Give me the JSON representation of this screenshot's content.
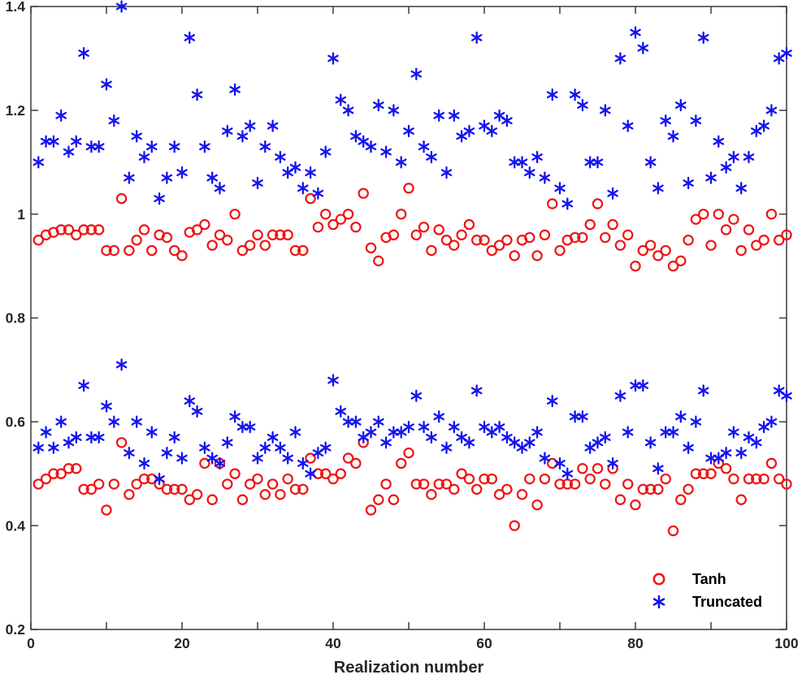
{
  "chart_data": {
    "type": "scatter",
    "title": "",
    "xlabel": "Realization number",
    "ylabel": "",
    "xlim": [
      0,
      100
    ],
    "ylim": [
      0.2,
      1.4
    ],
    "xticks": [
      0,
      10,
      20,
      30,
      40,
      50,
      60,
      70,
      80,
      90,
      100
    ],
    "xtick_labels": [
      "0",
      "",
      "20",
      "",
      "40",
      "",
      "60",
      "",
      "80",
      "",
      "100"
    ],
    "yticks": [
      0.2,
      0.4,
      0.6,
      0.8,
      1.0,
      1.2,
      1.4
    ],
    "ytick_labels": [
      "0.2",
      "0.4",
      "0.6",
      "0.8",
      "1",
      "1.2",
      "1.4"
    ],
    "grid": false,
    "box": true,
    "colors": {
      "tanh": "#ee1414",
      "truncated": "#1414ee",
      "axis": "#3b3b3b",
      "text": "#262626"
    },
    "legend": {
      "position": "inside-lower-right",
      "box": false,
      "entries": [
        {
          "label": "Tanh",
          "marker": "circle",
          "color": "#ee1414"
        },
        {
          "label": "Truncated",
          "marker": "asterisk",
          "color": "#1414ee"
        }
      ]
    },
    "x": {
      "start": 1,
      "step": 1,
      "count": 100
    },
    "series": [
      {
        "name": "Tanh",
        "marker": "circle",
        "color": "#ee1414",
        "groups": {
          "upper": [
            0.95,
            0.96,
            0.965,
            0.97,
            0.97,
            0.96,
            0.97,
            0.97,
            0.97,
            0.93,
            0.93,
            1.03,
            0.93,
            0.95,
            0.97,
            0.93,
            0.96,
            0.955,
            0.93,
            0.92,
            0.965,
            0.97,
            0.98,
            0.94,
            0.96,
            0.95,
            1.0,
            0.93,
            0.94,
            0.96,
            0.94,
            0.96,
            0.96,
            0.96,
            0.93,
            0.93,
            1.03,
            0.975,
            1.0,
            0.98,
            0.99,
            1.0,
            0.975,
            1.04,
            0.935,
            0.91,
            0.955,
            0.96,
            1.0,
            1.05,
            0.96,
            0.975,
            0.93,
            0.97,
            0.95,
            0.94,
            0.96,
            0.98,
            0.95,
            0.95,
            0.93,
            0.94,
            0.95,
            0.92,
            0.95,
            0.955,
            0.92,
            0.96,
            1.02,
            0.93,
            0.95,
            0.955,
            0.955,
            0.98,
            1.02,
            0.955,
            0.98,
            0.94,
            0.96,
            0.9,
            0.93,
            0.94,
            0.92,
            0.93,
            0.9,
            0.91,
            0.95,
            0.99,
            1.0,
            0.94,
            1.0,
            0.97,
            0.99,
            0.93,
            0.97,
            0.94,
            0.95,
            1.0,
            0.95,
            0.96
          ],
          "lower": [
            0.48,
            0.49,
            0.5,
            0.5,
            0.51,
            0.51,
            0.47,
            0.47,
            0.48,
            0.43,
            0.48,
            0.56,
            0.46,
            0.48,
            0.49,
            0.49,
            0.48,
            0.47,
            0.47,
            0.47,
            0.45,
            0.46,
            0.52,
            0.45,
            0.52,
            0.48,
            0.5,
            0.45,
            0.48,
            0.49,
            0.46,
            0.48,
            0.46,
            0.49,
            0.47,
            0.47,
            0.53,
            0.5,
            0.5,
            0.49,
            0.5,
            0.53,
            0.52,
            0.56,
            0.43,
            0.45,
            0.48,
            0.45,
            0.52,
            0.54,
            0.48,
            0.48,
            0.46,
            0.48,
            0.48,
            0.47,
            0.5,
            0.49,
            0.47,
            0.49,
            0.49,
            0.46,
            0.47,
            0.4,
            0.46,
            0.49,
            0.44,
            0.49,
            0.52,
            0.48,
            0.48,
            0.48,
            0.51,
            0.49,
            0.51,
            0.48,
            0.51,
            0.45,
            0.48,
            0.44,
            0.47,
            0.47,
            0.47,
            0.49,
            0.39,
            0.45,
            0.47,
            0.5,
            0.5,
            0.5,
            0.52,
            0.51,
            0.49,
            0.45,
            0.49,
            0.49,
            0.49,
            0.52,
            0.49,
            0.48
          ]
        }
      },
      {
        "name": "Truncated",
        "marker": "asterisk",
        "color": "#1414ee",
        "groups": {
          "upper": [
            1.1,
            1.14,
            1.14,
            1.19,
            1.12,
            1.14,
            1.31,
            1.13,
            1.13,
            1.25,
            1.18,
            1.4,
            1.07,
            1.15,
            1.11,
            1.13,
            1.03,
            1.07,
            1.13,
            1.08,
            1.34,
            1.23,
            1.13,
            1.07,
            1.05,
            1.16,
            1.24,
            1.15,
            1.17,
            1.06,
            1.13,
            1.17,
            1.11,
            1.08,
            1.09,
            1.05,
            1.08,
            1.04,
            1.12,
            1.3,
            1.22,
            1.2,
            1.15,
            1.14,
            1.13,
            1.21,
            1.12,
            1.2,
            1.1,
            1.16,
            1.27,
            1.13,
            1.11,
            1.19,
            1.08,
            1.19,
            1.15,
            1.16,
            1.34,
            1.17,
            1.16,
            1.19,
            1.18,
            1.1,
            1.1,
            1.08,
            1.11,
            1.07,
            1.23,
            1.05,
            1.02,
            1.23,
            1.21,
            1.1,
            1.1,
            1.2,
            1.04,
            1.3,
            1.17,
            1.35,
            1.32,
            1.1,
            1.05,
            1.18,
            1.15,
            1.21,
            1.06,
            1.18,
            1.34,
            1.07,
            1.14,
            1.09,
            1.11,
            1.05,
            1.11,
            1.16,
            1.17,
            1.2,
            1.3,
            1.31
          ],
          "lower": [
            0.55,
            0.58,
            0.55,
            0.6,
            0.56,
            0.57,
            0.67,
            0.57,
            0.57,
            0.63,
            0.6,
            0.71,
            0.54,
            0.6,
            0.52,
            0.58,
            0.49,
            0.54,
            0.57,
            0.53,
            0.64,
            0.62,
            0.55,
            0.53,
            0.52,
            0.56,
            0.61,
            0.59,
            0.59,
            0.53,
            0.55,
            0.57,
            0.55,
            0.53,
            0.58,
            0.52,
            0.5,
            0.54,
            0.55,
            0.68,
            0.62,
            0.6,
            0.6,
            0.57,
            0.58,
            0.6,
            0.56,
            0.58,
            0.58,
            0.59,
            0.65,
            0.59,
            0.57,
            0.61,
            0.55,
            0.59,
            0.57,
            0.56,
            0.66,
            0.59,
            0.58,
            0.59,
            0.57,
            0.56,
            0.55,
            0.56,
            0.58,
            0.53,
            0.64,
            0.52,
            0.5,
            0.61,
            0.61,
            0.55,
            0.56,
            0.57,
            0.52,
            0.65,
            0.58,
            0.67,
            0.67,
            0.56,
            0.51,
            0.58,
            0.58,
            0.61,
            0.55,
            0.6,
            0.66,
            0.53,
            0.53,
            0.54,
            0.58,
            0.54,
            0.57,
            0.56,
            0.59,
            0.6,
            0.66,
            0.65
          ]
        }
      }
    ]
  }
}
